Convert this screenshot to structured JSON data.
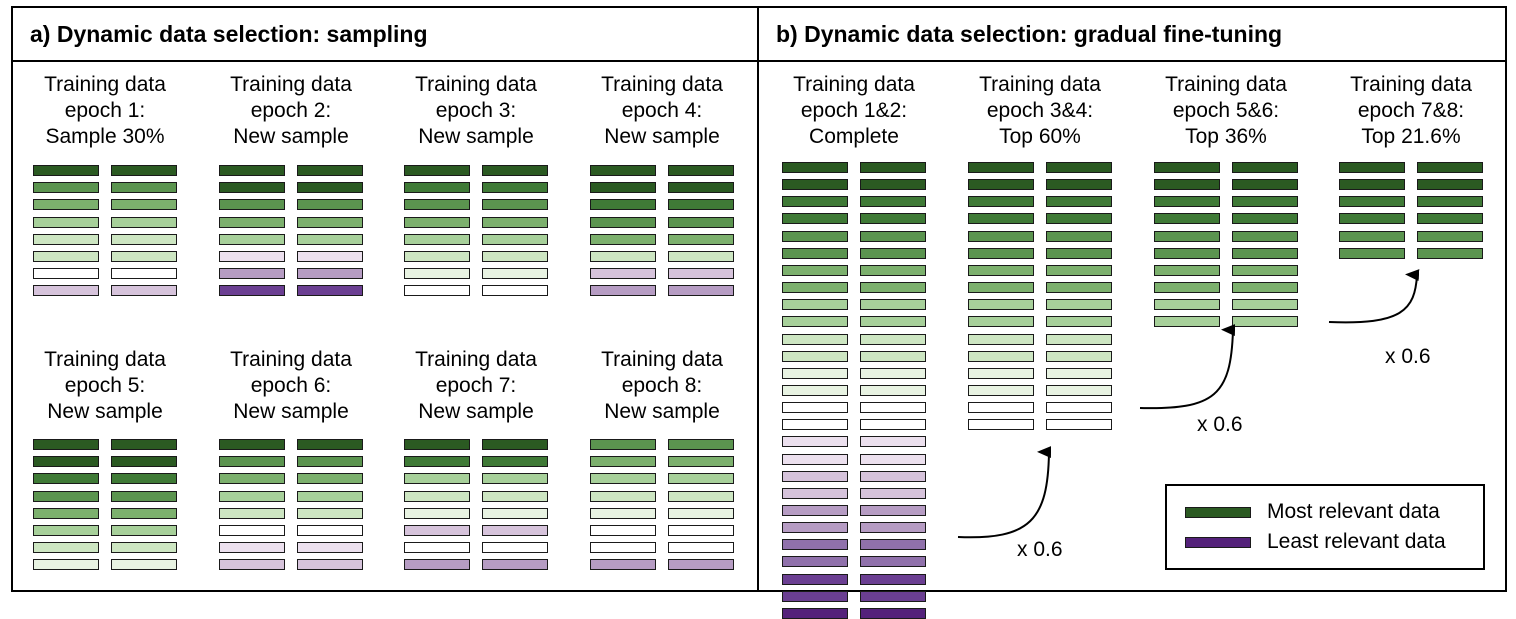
{
  "colors": {
    "c1": "#2b5a22",
    "c2": "#3f7a36",
    "c3": "#5b944f",
    "c4": "#7cb06d",
    "c5": "#a7d09a",
    "c6": "#cde6c2",
    "c7": "#e8f3e2",
    "c8": "#ffffff",
    "c9": "#ece0ee",
    "c10": "#d6c3db",
    "c11": "#b69cc3",
    "c12": "#9071ab",
    "c13": "#6b3f92",
    "c14": "#54217a"
  },
  "panel_a": {
    "title": "a) Dynamic data selection: sampling",
    "epochs": [
      {
        "lines": [
          "Training data",
          "epoch 1:",
          "Sample 30%"
        ],
        "levels": [
          "c1",
          "c3",
          "c4",
          "c5",
          "c6",
          "c6",
          "c8",
          "c10"
        ]
      },
      {
        "lines": [
          "Training data",
          "epoch 2:",
          "New sample"
        ],
        "levels": [
          "c1",
          "c1",
          "c3",
          "c4",
          "c5",
          "c9",
          "c11",
          "c13"
        ]
      },
      {
        "lines": [
          "Training data",
          "epoch 3:",
          "New sample"
        ],
        "levels": [
          "c1",
          "c2",
          "c3",
          "c4",
          "c5",
          "c6",
          "c7",
          "c8"
        ]
      },
      {
        "lines": [
          "Training data",
          "epoch 4:",
          "New sample"
        ],
        "levels": [
          "c1",
          "c1",
          "c2",
          "c3",
          "c4",
          "c6",
          "c10",
          "c11"
        ]
      },
      {
        "lines": [
          "Training data",
          "epoch 5:",
          "New sample"
        ],
        "levels": [
          "c1",
          "c1",
          "c2",
          "c3",
          "c4",
          "c5",
          "c6",
          "c7"
        ]
      },
      {
        "lines": [
          "Training data",
          "epoch 6:",
          "New sample"
        ],
        "levels": [
          "c1",
          "c3",
          "c4",
          "c5",
          "c6",
          "c8",
          "c9",
          "c10"
        ]
      },
      {
        "lines": [
          "Training data",
          "epoch 7:",
          "New sample"
        ],
        "levels": [
          "c1",
          "c2",
          "c5",
          "c6",
          "c7",
          "c10",
          "c8",
          "c11"
        ]
      },
      {
        "lines": [
          "Training data",
          "epoch 8:",
          "New sample"
        ],
        "levels": [
          "c3",
          "c4",
          "c5",
          "c6",
          "c7",
          "c8",
          "c8",
          "c11"
        ]
      }
    ]
  },
  "panel_b": {
    "title": "b) Dynamic data selection: gradual fine-tuning",
    "stages": [
      {
        "lines": [
          "Training data",
          "epoch 1&2:",
          "Complete"
        ],
        "levels": [
          "c1",
          "c1",
          "c2",
          "c2",
          "c3",
          "c3",
          "c4",
          "c4",
          "c5",
          "c5",
          "c6",
          "c6",
          "c7",
          "c7",
          "c8",
          "c8",
          "c9",
          "c9",
          "c10",
          "c10",
          "c11",
          "c11",
          "c12",
          "c12",
          "c13",
          "c13",
          "c14"
        ]
      },
      {
        "lines": [
          "Training data",
          "epoch 3&4:",
          "Top 60%"
        ],
        "levels": [
          "c1",
          "c1",
          "c2",
          "c2",
          "c3",
          "c3",
          "c4",
          "c4",
          "c5",
          "c5",
          "c6",
          "c6",
          "c7",
          "c7",
          "c8",
          "c8"
        ]
      },
      {
        "lines": [
          "Training data",
          "epoch 5&6:",
          "Top 36%"
        ],
        "levels": [
          "c1",
          "c1",
          "c2",
          "c2",
          "c3",
          "c3",
          "c4",
          "c4",
          "c5",
          "c5"
        ]
      },
      {
        "lines": [
          "Training data",
          "epoch 7&8:",
          "Top 21.6%"
        ],
        "levels": [
          "c1",
          "c1",
          "c2",
          "c2",
          "c3",
          "c3"
        ]
      }
    ],
    "multiplier_label": "x 0.6",
    "legend": {
      "most": "Most relevant data",
      "least": "Least relevant data"
    }
  }
}
